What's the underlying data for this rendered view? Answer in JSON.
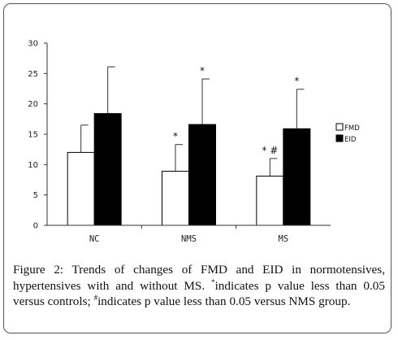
{
  "chart_data": {
    "type": "bar",
    "categories": [
      "NC",
      "NMS",
      "MS"
    ],
    "series": [
      {
        "name": "FMD",
        "fill": "#ffffff",
        "values": [
          12.0,
          8.9,
          8.1
        ],
        "errors": [
          4.5,
          4.4,
          2.9
        ],
        "markers": [
          "",
          "*",
          "* #"
        ]
      },
      {
        "name": "EID",
        "fill": "#000000",
        "values": [
          18.4,
          16.6,
          15.9
        ],
        "errors": [
          7.7,
          7.5,
          6.5
        ],
        "markers": [
          "",
          "*",
          "*"
        ]
      }
    ],
    "ylim": [
      0,
      30
    ],
    "yticks": [
      0,
      5,
      10,
      15,
      20,
      25,
      30
    ],
    "grid": false,
    "legend": "right"
  },
  "caption": {
    "part1": "Figure 2: Trends of changes of FMD and EID in normotensives, hypertensives with and without MS. ",
    "sup1": "*",
    "part2": "indicates p value less than 0.05 versus controls; ",
    "sup2": "#",
    "part3": "indicates p value less than 0.05 versus NMS group."
  }
}
